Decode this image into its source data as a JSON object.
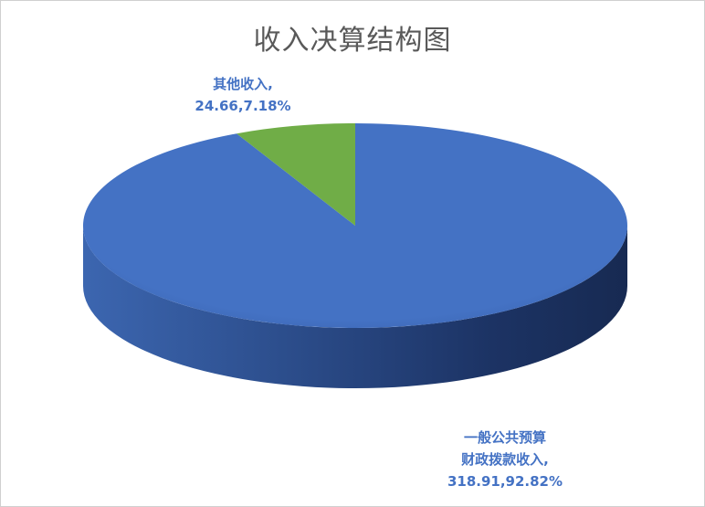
{
  "chart_data": {
    "type": "pie",
    "style": "3d",
    "title": "收入决算结构图",
    "legend": "none",
    "slices": [
      {
        "label_lines": [
          "一般公共预算",
          "财政拨款收入,",
          "318.91,92.82%"
        ],
        "name": "一般公共预算财政拨款收入",
        "value": 318.91,
        "percent": 92.82,
        "color": "#4472c4"
      },
      {
        "label_lines": [
          "其他收入,",
          "24.66,7.18%"
        ],
        "name": "其他收入",
        "value": 24.66,
        "percent": 7.18,
        "color": "#70ad47"
      }
    ]
  }
}
